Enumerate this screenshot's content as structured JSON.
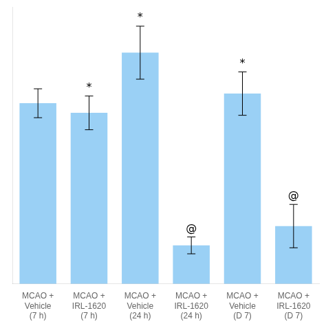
{
  "chart_data": {
    "type": "bar",
    "categories": [
      "MCAO +\nVehicle\n(7 h)",
      "MCAO +\nIRL-1620\n(7 h)",
      "MCAO +\nVehicle\n(24 h)",
      "MCAO +\nIRL-1620\n(24 h)",
      "MCAO +\nVehicle\n(D 7)",
      "MCAO +\nIRL-1620\n(D 7)"
    ],
    "values": [
      150,
      142,
      192,
      32,
      158,
      48
    ],
    "errors": [
      12,
      14,
      22,
      7,
      18,
      18
    ],
    "annotations": [
      null,
      "*",
      "*",
      "@",
      "*",
      "@"
    ],
    "ylim": [
      0,
      230
    ],
    "grid": false,
    "tick_labels": "x"
  }
}
